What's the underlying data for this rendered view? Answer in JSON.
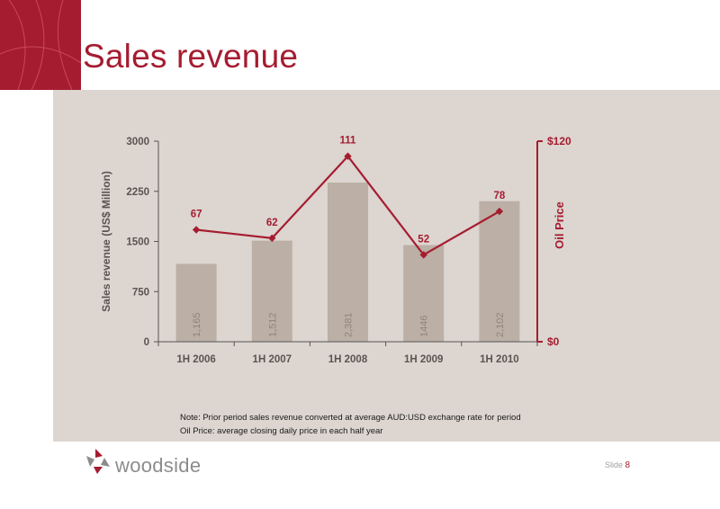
{
  "title": "Sales revenue",
  "notes": [
    "Note: Prior period sales revenue converted at average AUD:USD exchange rate for period",
    "Oil Price: average closing daily price in each half year"
  ],
  "brand": {
    "name": "woodside",
    "accent": "#a51c30"
  },
  "slide": {
    "label": "Slide",
    "number": "8"
  },
  "chart_data": {
    "type": "bar",
    "categories": [
      "1H 2006",
      "1H 2007",
      "1H 2008",
      "1H 2009",
      "1H 2010"
    ],
    "series": [
      {
        "type": "bar",
        "values": [
          1165,
          1512,
          2381,
          1446,
          2102
        ],
        "labels": [
          "1,165",
          "1,512",
          "2,381",
          "1446",
          "2,102"
        ],
        "color": "#bcafa5"
      },
      {
        "type": "line",
        "values": [
          67,
          62,
          111,
          52,
          78
        ],
        "labels": [
          "67",
          "62",
          "111",
          "52",
          "78"
        ],
        "color": "#a51c30",
        "axis": "right"
      }
    ],
    "ylabel": "Sales revenue (US$ Million)",
    "y2label": "Oil Price",
    "ylim": [
      0,
      3000
    ],
    "y2lim": [
      0,
      120
    ],
    "yticks": [
      "0",
      "750",
      "1500",
      "2250",
      "3000"
    ],
    "y2ticks": [
      "$0",
      "$120"
    ],
    "grid": false
  }
}
